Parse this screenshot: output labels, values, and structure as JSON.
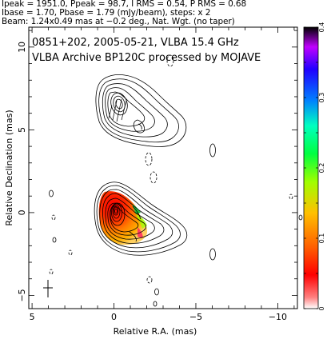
{
  "header": {
    "line1": "Ipeak = 1951.0, Ppeak = 98.7, I RMS = 0.54, P RMS = 0.68",
    "line2": "Ibase = 1.70, Pbase = 1.79 (mJy/beam), steps: x 2",
    "line3": "Beam: 1.24x0.49 mas at −0.2 deg., Nat. Wgt. (no taper)"
  },
  "chart_data": {
    "type": "heatmap",
    "title_line1": "0851+202, 2005-05-21, VLBA 15.4 GHz",
    "title_line2": "VLBA Archive BP120C processed by MOJAVE",
    "xlabel": "Relative R.A. (mas)",
    "ylabel": "Relative Declination (mas)",
    "xlim": [
      5.2,
      -11.2
    ],
    "ylim": [
      -5.8,
      11.2
    ],
    "x_ticks": [
      5,
      0,
      -5,
      -10
    ],
    "x_tick_labels": [
      "5",
      "0",
      "−5",
      "−10"
    ],
    "y_ticks": [
      -5,
      0,
      5,
      10
    ],
    "y_tick_labels": [
      "−5",
      "0",
      "5",
      "10"
    ],
    "colorbar": {
      "range": [
        0,
        0.4
      ],
      "ticks": [
        0,
        0.1,
        0.2,
        0.3,
        0.4
      ],
      "tick_labels": [
        "0",
        "0.1",
        "0.2",
        "0.3",
        "0.4"
      ]
    },
    "components": [
      {
        "x": 0.05,
        "y": 0.1,
        "peak_mJy": 1951.0,
        "note": "core"
      },
      {
        "x": 0.2,
        "y": 6.5,
        "note": "upper feature"
      }
    ]
  }
}
